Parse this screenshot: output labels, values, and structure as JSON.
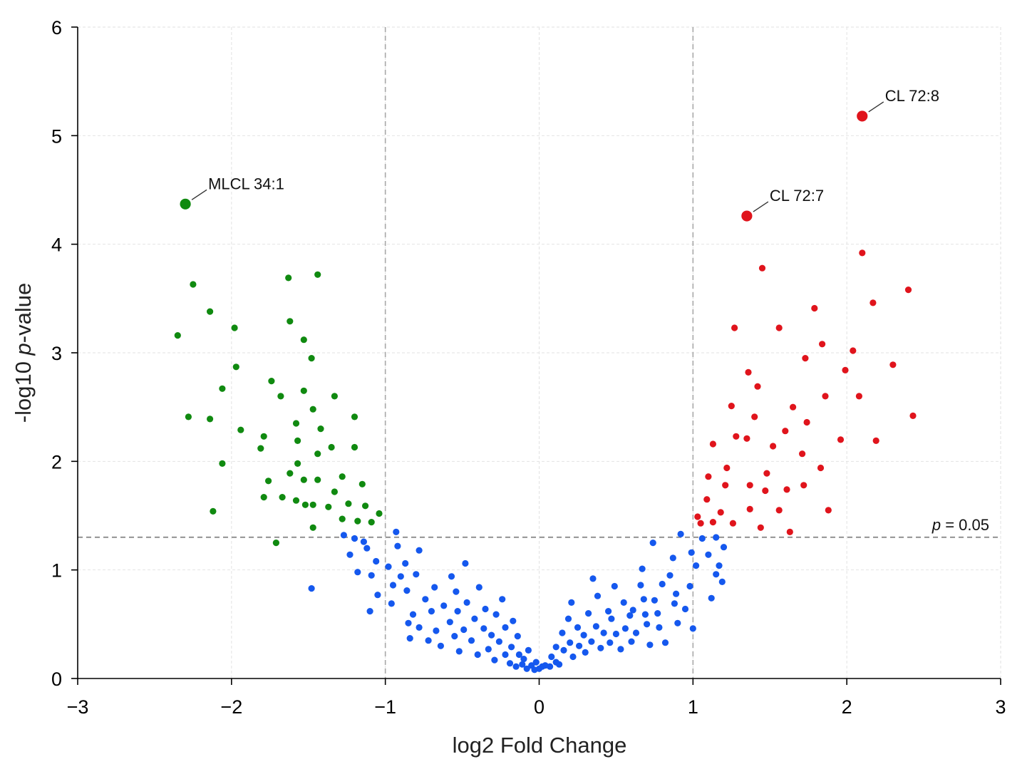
{
  "chart_data": {
    "type": "scatter",
    "title": "",
    "xlabel": "log2 Fold Change",
    "ylabel_prefix": "-log10 ",
    "ylabel_italic": "p",
    "ylabel_suffix": "-value",
    "xlim": [
      -3,
      3
    ],
    "ylim": [
      0,
      6
    ],
    "x_ticks": [
      "−3",
      "−2",
      "−1",
      "0",
      "1",
      "2",
      "3"
    ],
    "y_ticks": [
      "0",
      "1",
      "2",
      "3",
      "4",
      "5",
      "6"
    ],
    "grid": true,
    "fold_change_thresholds": [
      -1,
      1
    ],
    "significance_line": {
      "y": 1.301,
      "label_italic": "p",
      "label_rest": " = 0.05"
    },
    "colors": {
      "down": "#108a10",
      "up": "#e0141c",
      "ns": "#1558ee"
    },
    "annotations": [
      {
        "label": "MLCL 34:1",
        "x": -2.3,
        "y": 4.37,
        "color": "down"
      },
      {
        "label": "CL 72:7",
        "x": 1.35,
        "y": 4.26,
        "color": "up"
      },
      {
        "label": "CL 72:8",
        "x": 2.1,
        "y": 5.18,
        "color": "up"
      }
    ],
    "series": [
      {
        "group": "down",
        "points": [
          [
            -2.35,
            3.16
          ],
          [
            -2.25,
            3.63
          ],
          [
            -2.28,
            2.41
          ],
          [
            -2.14,
            3.38
          ],
          [
            -2.14,
            2.39
          ],
          [
            -2.12,
            1.54
          ],
          [
            -2.06,
            2.67
          ],
          [
            -2.06,
            1.98
          ],
          [
            -1.98,
            3.23
          ],
          [
            -1.97,
            2.87
          ],
          [
            -1.94,
            2.29
          ],
          [
            -1.81,
            2.12
          ],
          [
            -1.79,
            2.23
          ],
          [
            -1.79,
            1.67
          ],
          [
            -1.76,
            1.82
          ],
          [
            -1.74,
            2.74
          ],
          [
            -1.71,
            1.25
          ],
          [
            -1.68,
            2.6
          ],
          [
            -1.67,
            1.67
          ],
          [
            -1.63,
            3.69
          ],
          [
            -1.62,
            3.29
          ],
          [
            -1.62,
            1.89
          ],
          [
            -1.58,
            2.35
          ],
          [
            -1.57,
            2.19
          ],
          [
            -1.57,
            1.98
          ],
          [
            -1.58,
            1.64
          ],
          [
            -1.53,
            3.12
          ],
          [
            -1.53,
            2.65
          ],
          [
            -1.53,
            1.83
          ],
          [
            -1.52,
            1.6
          ],
          [
            -1.48,
            2.95
          ],
          [
            -1.47,
            2.48
          ],
          [
            -1.47,
            1.6
          ],
          [
            -1.47,
            1.39
          ],
          [
            -1.44,
            3.72
          ],
          [
            -1.44,
            2.07
          ],
          [
            -1.44,
            1.83
          ],
          [
            -1.42,
            2.3
          ],
          [
            -1.37,
            1.58
          ],
          [
            -1.35,
            2.13
          ],
          [
            -1.33,
            1.72
          ],
          [
            -1.33,
            2.6
          ],
          [
            -1.28,
            1.86
          ],
          [
            -1.28,
            1.47
          ],
          [
            -1.24,
            1.61
          ],
          [
            -1.2,
            2.41
          ],
          [
            -1.2,
            2.13
          ],
          [
            -1.18,
            1.45
          ],
          [
            -1.15,
            1.79
          ],
          [
            -1.13,
            1.59
          ],
          [
            -1.09,
            1.44
          ],
          [
            -1.04,
            1.52
          ]
        ]
      },
      {
        "group": "up",
        "points": [
          [
            1.03,
            1.49
          ],
          [
            1.05,
            1.43
          ],
          [
            1.09,
            1.65
          ],
          [
            1.1,
            1.86
          ],
          [
            1.13,
            2.16
          ],
          [
            1.13,
            1.44
          ],
          [
            1.18,
            1.53
          ],
          [
            1.21,
            1.78
          ],
          [
            1.22,
            1.94
          ],
          [
            1.25,
            2.51
          ],
          [
            1.26,
            1.43
          ],
          [
            1.27,
            3.23
          ],
          [
            1.28,
            2.23
          ],
          [
            1.35,
            2.21
          ],
          [
            1.36,
            2.82
          ],
          [
            1.37,
            1.56
          ],
          [
            1.37,
            1.78
          ],
          [
            1.4,
            2.41
          ],
          [
            1.42,
            2.69
          ],
          [
            1.44,
            1.39
          ],
          [
            1.45,
            3.78
          ],
          [
            1.47,
            1.73
          ],
          [
            1.48,
            1.89
          ],
          [
            1.52,
            2.14
          ],
          [
            1.56,
            1.55
          ],
          [
            1.56,
            3.23
          ],
          [
            1.6,
            2.28
          ],
          [
            1.61,
            1.74
          ],
          [
            1.63,
            1.35
          ],
          [
            1.65,
            2.5
          ],
          [
            1.71,
            2.07
          ],
          [
            1.72,
            1.78
          ],
          [
            1.73,
            2.95
          ],
          [
            1.74,
            2.36
          ],
          [
            1.79,
            3.41
          ],
          [
            1.84,
            3.08
          ],
          [
            1.83,
            1.94
          ],
          [
            1.86,
            2.6
          ],
          [
            1.88,
            1.55
          ],
          [
            1.96,
            2.2
          ],
          [
            1.99,
            2.84
          ],
          [
            2.04,
            3.02
          ],
          [
            2.08,
            2.6
          ],
          [
            2.1,
            3.92
          ],
          [
            2.17,
            3.46
          ],
          [
            2.19,
            2.19
          ],
          [
            2.3,
            2.89
          ],
          [
            2.4,
            3.58
          ],
          [
            2.43,
            2.42
          ]
        ]
      },
      {
        "group": "ns",
        "points": [
          [
            -1.48,
            0.83
          ],
          [
            -1.27,
            1.32
          ],
          [
            -1.23,
            1.14
          ],
          [
            -1.2,
            1.29
          ],
          [
            -1.18,
            0.98
          ],
          [
            -1.14,
            1.26
          ],
          [
            -1.12,
            1.2
          ],
          [
            -1.1,
            0.62
          ],
          [
            -1.09,
            0.95
          ],
          [
            -1.06,
            1.08
          ],
          [
            -1.05,
            0.77
          ],
          [
            -0.98,
            1.03
          ],
          [
            -0.96,
            0.69
          ],
          [
            -0.95,
            0.86
          ],
          [
            -0.93,
            1.35
          ],
          [
            -0.92,
            1.22
          ],
          [
            -0.9,
            0.94
          ],
          [
            -0.87,
            1.06
          ],
          [
            -0.86,
            0.81
          ],
          [
            -0.85,
            0.51
          ],
          [
            -0.84,
            0.37
          ],
          [
            -0.82,
            0.59
          ],
          [
            -0.8,
            0.96
          ],
          [
            -0.78,
            1.18
          ],
          [
            -0.78,
            0.47
          ],
          [
            -0.74,
            0.73
          ],
          [
            -0.72,
            0.35
          ],
          [
            -0.7,
            0.62
          ],
          [
            -0.68,
            0.84
          ],
          [
            -0.67,
            0.44
          ],
          [
            -0.64,
            0.3
          ],
          [
            -0.62,
            0.67
          ],
          [
            -0.58,
            0.52
          ],
          [
            -0.57,
            0.94
          ],
          [
            -0.55,
            0.39
          ],
          [
            -0.54,
            0.8
          ],
          [
            -0.53,
            0.62
          ],
          [
            -0.52,
            0.25
          ],
          [
            -0.49,
            0.45
          ],
          [
            -0.48,
            1.06
          ],
          [
            -0.47,
            0.7
          ],
          [
            -0.44,
            0.35
          ],
          [
            -0.42,
            0.55
          ],
          [
            -0.4,
            0.22
          ],
          [
            -0.39,
            0.84
          ],
          [
            -0.36,
            0.46
          ],
          [
            -0.35,
            0.64
          ],
          [
            -0.33,
            0.27
          ],
          [
            -0.31,
            0.4
          ],
          [
            -0.29,
            0.17
          ],
          [
            -0.28,
            0.59
          ],
          [
            -0.26,
            0.34
          ],
          [
            -0.24,
            0.73
          ],
          [
            -0.22,
            0.22
          ],
          [
            -0.22,
            0.47
          ],
          [
            -0.19,
            0.14
          ],
          [
            -0.18,
            0.29
          ],
          [
            -0.17,
            0.53
          ],
          [
            -0.15,
            0.11
          ],
          [
            -0.14,
            0.39
          ],
          [
            -0.13,
            0.22
          ],
          [
            -0.11,
            0.13
          ],
          [
            -0.1,
            0.18
          ],
          [
            -0.08,
            0.09
          ],
          [
            -0.07,
            0.26
          ],
          [
            -0.05,
            0.12
          ],
          [
            -0.03,
            0.08
          ],
          [
            -0.02,
            0.15
          ],
          [
            0.0,
            0.09
          ],
          [
            0.02,
            0.11
          ],
          [
            0.04,
            0.12
          ],
          [
            0.07,
            0.11
          ],
          [
            0.08,
            0.2
          ],
          [
            0.11,
            0.15
          ],
          [
            0.11,
            0.29
          ],
          [
            0.13,
            0.13
          ],
          [
            0.15,
            0.42
          ],
          [
            0.16,
            0.26
          ],
          [
            0.19,
            0.55
          ],
          [
            0.2,
            0.33
          ],
          [
            0.21,
            0.7
          ],
          [
            0.22,
            0.2
          ],
          [
            0.25,
            0.47
          ],
          [
            0.26,
            0.3
          ],
          [
            0.29,
            0.4
          ],
          [
            0.3,
            0.24
          ],
          [
            0.32,
            0.6
          ],
          [
            0.34,
            0.34
          ],
          [
            0.35,
            0.92
          ],
          [
            0.37,
            0.48
          ],
          [
            0.38,
            0.76
          ],
          [
            0.4,
            0.28
          ],
          [
            0.42,
            0.42
          ],
          [
            0.45,
            0.62
          ],
          [
            0.46,
            0.33
          ],
          [
            0.47,
            0.55
          ],
          [
            0.49,
            0.85
          ],
          [
            0.5,
            0.41
          ],
          [
            0.53,
            0.27
          ],
          [
            0.55,
            0.7
          ],
          [
            0.56,
            0.46
          ],
          [
            0.59,
            0.58
          ],
          [
            0.6,
            0.34
          ],
          [
            0.61,
            0.63
          ],
          [
            0.63,
            0.42
          ],
          [
            0.66,
            0.86
          ],
          [
            0.67,
            1.01
          ],
          [
            0.68,
            0.73
          ],
          [
            0.69,
            0.59
          ],
          [
            0.7,
            0.5
          ],
          [
            0.72,
            0.31
          ],
          [
            0.74,
            1.25
          ],
          [
            0.75,
            0.72
          ],
          [
            0.77,
            0.6
          ],
          [
            0.78,
            0.47
          ],
          [
            0.8,
            0.87
          ],
          [
            0.82,
            0.33
          ],
          [
            0.85,
            0.95
          ],
          [
            0.87,
            1.11
          ],
          [
            0.88,
            0.69
          ],
          [
            0.89,
            0.78
          ],
          [
            0.9,
            0.51
          ],
          [
            0.92,
            1.33
          ],
          [
            0.95,
            0.64
          ],
          [
            0.98,
            0.85
          ],
          [
            0.99,
            1.16
          ],
          [
            1.0,
            0.46
          ],
          [
            1.02,
            1.04
          ],
          [
            1.06,
            1.29
          ],
          [
            1.1,
            1.14
          ],
          [
            1.12,
            0.74
          ],
          [
            1.15,
            0.96
          ],
          [
            1.15,
            1.3
          ],
          [
            1.17,
            1.04
          ],
          [
            1.19,
            0.89
          ],
          [
            1.2,
            1.21
          ]
        ]
      }
    ]
  }
}
